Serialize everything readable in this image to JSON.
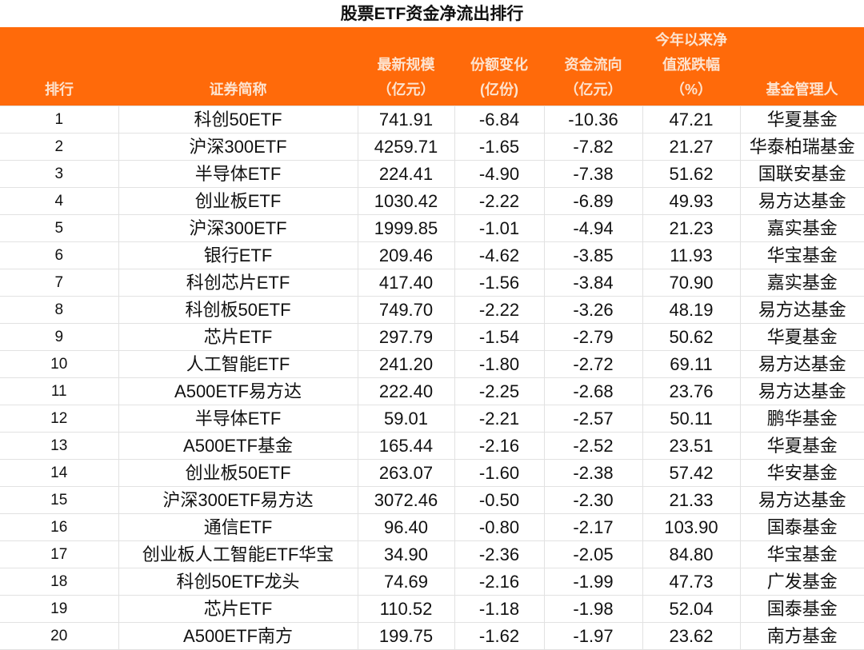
{
  "title": "股票ETF资金净流出排行",
  "accent_color": "#ff6a0a",
  "columns": [
    [
      "排行"
    ],
    [
      "证券简称"
    ],
    [
      "最新规模",
      "（亿元）"
    ],
    [
      "份额变化",
      "(亿份)"
    ],
    [
      "资金流向",
      "（亿元）"
    ],
    [
      "今年以来净",
      "值涨跌幅",
      "（%）"
    ],
    [
      "基金管理人"
    ]
  ],
  "rows": [
    [
      "1",
      "科创50ETF",
      "741.91",
      "-6.84",
      "-10.36",
      "47.21",
      "华夏基金"
    ],
    [
      "2",
      "沪深300ETF",
      "4259.71",
      "-1.65",
      "-7.82",
      "21.27",
      "华泰柏瑞基金"
    ],
    [
      "3",
      "半导体ETF",
      "224.41",
      "-4.90",
      "-7.38",
      "51.62",
      "国联安基金"
    ],
    [
      "4",
      "创业板ETF",
      "1030.42",
      "-2.22",
      "-6.89",
      "49.93",
      "易方达基金"
    ],
    [
      "5",
      "沪深300ETF",
      "1999.85",
      "-1.01",
      "-4.94",
      "21.23",
      "嘉实基金"
    ],
    [
      "6",
      "银行ETF",
      "209.46",
      "-4.62",
      "-3.85",
      "11.93",
      "华宝基金"
    ],
    [
      "7",
      "科创芯片ETF",
      "417.40",
      "-1.56",
      "-3.84",
      "70.90",
      "嘉实基金"
    ],
    [
      "8",
      "科创板50ETF",
      "749.70",
      "-2.22",
      "-3.26",
      "48.19",
      "易方达基金"
    ],
    [
      "9",
      "芯片ETF",
      "297.79",
      "-1.54",
      "-2.79",
      "50.62",
      "华夏基金"
    ],
    [
      "10",
      "人工智能ETF",
      "241.20",
      "-1.80",
      "-2.72",
      "69.11",
      "易方达基金"
    ],
    [
      "11",
      "A500ETF易方达",
      "222.40",
      "-2.25",
      "-2.68",
      "23.76",
      "易方达基金"
    ],
    [
      "12",
      "半导体ETF",
      "59.01",
      "-2.21",
      "-2.57",
      "50.11",
      "鹏华基金"
    ],
    [
      "13",
      "A500ETF基金",
      "165.44",
      "-2.16",
      "-2.52",
      "23.51",
      "华夏基金"
    ],
    [
      "14",
      "创业板50ETF",
      "263.07",
      "-1.60",
      "-2.38",
      "57.42",
      "华安基金"
    ],
    [
      "15",
      "沪深300ETF易方达",
      "3072.46",
      "-0.50",
      "-2.30",
      "21.33",
      "易方达基金"
    ],
    [
      "16",
      "通信ETF",
      "96.40",
      "-0.80",
      "-2.17",
      "103.90",
      "国泰基金"
    ],
    [
      "17",
      "创业板人工智能ETF华宝",
      "34.90",
      "-2.36",
      "-2.05",
      "84.80",
      "华宝基金"
    ],
    [
      "18",
      "科创50ETF龙头",
      "74.69",
      "-2.16",
      "-1.99",
      "47.73",
      "广发基金"
    ],
    [
      "19",
      "芯片ETF",
      "110.52",
      "-1.18",
      "-1.98",
      "52.04",
      "国泰基金"
    ],
    [
      "20",
      "A500ETF南方",
      "199.75",
      "-1.62",
      "-1.97",
      "23.62",
      "南方基金"
    ]
  ]
}
